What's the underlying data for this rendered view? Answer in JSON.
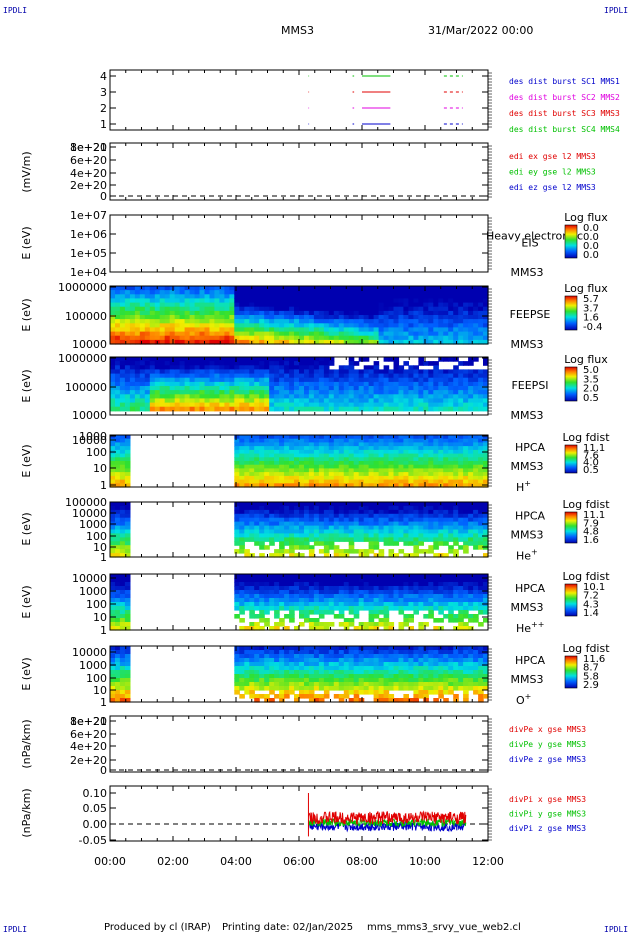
{
  "header": {
    "title": "MMS3",
    "date": "31/Mar/2022 00:00",
    "corner_mark": "IPDLI"
  },
  "footer": {
    "produced": "Produced by cl (IRAP)",
    "printing": "Printing date: 02/Jan/2025",
    "filename": "mms_mms3_srvy_vue_web2.cl"
  },
  "colors": {
    "red": "#e00000",
    "green": "#00c000",
    "blue": "#0000cc",
    "magenta": "#e000e0"
  },
  "chart_data": [
    {
      "type": "line",
      "id": "burst",
      "y_ticks": [
        "1",
        "2",
        "3",
        "4"
      ],
      "legend": [
        {
          "text": "des dist burst SC1 MMS1",
          "color": "#0000cc"
        },
        {
          "text": "des dist burst SC2 MMS2",
          "color": "#e000e0"
        },
        {
          "text": "des dist burst SC3 MMS3",
          "color": "#e00000"
        },
        {
          "text": "des dist burst SC4 MMS4",
          "color": "#00c000"
        }
      ]
    },
    {
      "type": "line",
      "id": "edi",
      "ylabel": "(mV/m)",
      "y_ticks": [
        "0",
        "2e+20",
        "4e+20",
        "6e+20",
        "8e+20",
        "1e+21"
      ],
      "legend": [
        {
          "text": "edi ex gse l2 MMS3",
          "color": "#e00000"
        },
        {
          "text": "edi ey gse l2 MMS3",
          "color": "#00c000"
        },
        {
          "text": "edi ez gse l2 MMS3",
          "color": "#0000cc"
        }
      ]
    },
    {
      "type": "heatmap",
      "id": "eis",
      "ylabel": "E (eV)",
      "y_ticks": [
        "1e+04",
        "1e+05",
        "1e+06",
        "1e+07"
      ],
      "instrument": "EIS",
      "overlay": "Heavy electron tc",
      "sc": "MMS3",
      "cb_title": "Log flux",
      "cb_ticks": [
        "0.0",
        "0.0",
        "0.0",
        "0.0"
      ]
    },
    {
      "type": "heatmap",
      "id": "feepse",
      "ylabel": "E (eV)",
      "y_ticks": [
        "10000",
        "100000",
        "1000000"
      ],
      "instrument": "FEEPSE",
      "sc": "MMS3",
      "cb_title": "Log flux",
      "cb_ticks": [
        "5.7",
        "3.7",
        "1.6",
        "-0.4"
      ]
    },
    {
      "type": "heatmap",
      "id": "feepsi",
      "ylabel": "E (eV)",
      "y_ticks": [
        "10000",
        "100000",
        "1000000"
      ],
      "instrument": "FEEPSI",
      "sc": "MMS3",
      "cb_title": "Log flux",
      "cb_ticks": [
        "5.0",
        "3.5",
        "2.0",
        "0.5"
      ]
    },
    {
      "type": "heatmap",
      "id": "hpca_h",
      "ylabel": "E (eV)",
      "y_ticks": [
        "1",
        "10",
        "100",
        "1000",
        "10000"
      ],
      "instrument": "HPCA",
      "sc": "MMS3",
      "species": "H",
      "charge": "+",
      "cb_title": "Log fdist",
      "cb_ticks": [
        "11.1",
        "7.6",
        "4.0",
        "0.5"
      ]
    },
    {
      "type": "heatmap",
      "id": "hpca_he",
      "ylabel": "E (eV)",
      "y_ticks": [
        "1",
        "10",
        "100",
        "1000",
        "10000",
        "100000"
      ],
      "instrument": "HPCA",
      "sc": "MMS3",
      "species": "He",
      "charge": "+",
      "cb_title": "Log fdist",
      "cb_ticks": [
        "11.1",
        "7.9",
        "4.8",
        "1.6"
      ]
    },
    {
      "type": "heatmap",
      "id": "hpca_hepp",
      "ylabel": "E (eV)",
      "y_ticks": [
        "1",
        "10",
        "100",
        "1000",
        "10000"
      ],
      "instrument": "HPCA",
      "sc": "MMS3",
      "species": "He",
      "charge": "++",
      "cb_title": "Log fdist",
      "cb_ticks": [
        "10.1",
        "7.2",
        "4.3",
        "1.4"
      ]
    },
    {
      "type": "heatmap",
      "id": "hpca_o",
      "ylabel": "E (eV)",
      "y_ticks": [
        "1",
        "10",
        "100",
        "1000",
        "10000"
      ],
      "instrument": "HPCA",
      "sc": "MMS3",
      "species": "O",
      "charge": "+",
      "cb_title": "Log fdist",
      "cb_ticks": [
        "11.6",
        "8.7",
        "5.8",
        "2.9"
      ]
    },
    {
      "type": "line",
      "id": "divpe",
      "ylabel": "(nPa/km)",
      "y_ticks": [
        "0",
        "2e+20",
        "4e+20",
        "6e+20",
        "8e+20",
        "1e+21"
      ],
      "legend": [
        {
          "text": "divPe x gse MMS3",
          "color": "#e00000"
        },
        {
          "text": "divPe y gse MMS3",
          "color": "#00c000"
        },
        {
          "text": "divPe z gse MMS3",
          "color": "#0000cc"
        }
      ]
    },
    {
      "type": "line",
      "id": "divpi",
      "ylabel": "(nPa/km)",
      "y_ticks": [
        "-0.05",
        "0.00",
        "0.05",
        "0.10"
      ],
      "legend": [
        {
          "text": "divPi x gse MMS3",
          "color": "#e00000"
        },
        {
          "text": "divPi y gse MMS3",
          "color": "#00c000"
        },
        {
          "text": "divPi z gse MMS3",
          "color": "#0000cc"
        }
      ]
    }
  ],
  "x_ticks": [
    "00:00",
    "02:00",
    "04:00",
    "06:00",
    "08:00",
    "10:00",
    "12:00"
  ]
}
